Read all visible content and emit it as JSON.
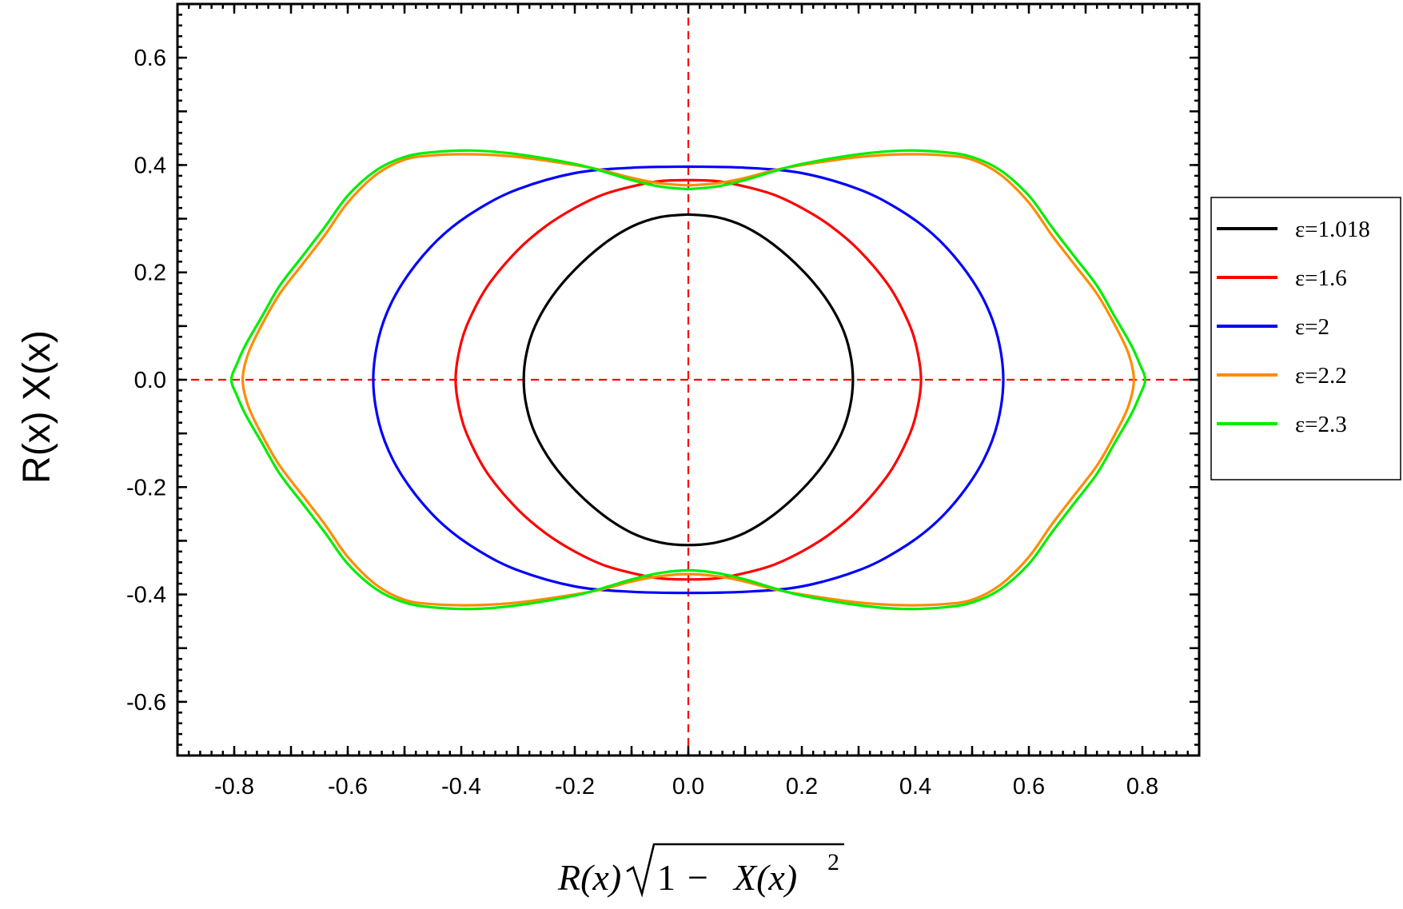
{
  "chart_data": {
    "type": "line",
    "title": "",
    "xlabel": {
      "prefix": "R(x)",
      "radicand_one": "1",
      "minus": "−",
      "radicand_term": "X(x)",
      "exponent": "2"
    },
    "ylabel": "R(x) X(x)",
    "xlim": [
      -0.9,
      0.9
    ],
    "ylim": [
      -0.7,
      0.7
    ],
    "xticks": [
      -0.8,
      -0.6,
      -0.4,
      -0.2,
      0.0,
      0.2,
      0.4,
      0.6,
      0.8
    ],
    "xtick_labels": [
      "-0.8",
      "-0.6",
      "-0.4",
      "-0.2",
      "0.0",
      "0.2",
      "0.4",
      "0.6",
      "0.8"
    ],
    "yticks": [
      -0.6,
      -0.4,
      -0.2,
      0.0,
      0.2,
      0.4,
      0.6
    ],
    "ytick_labels": [
      "-0.6",
      "-0.4",
      "-0.2",
      "0.0",
      "0.2",
      "0.4",
      "0.6"
    ],
    "reference_lines": [
      {
        "orientation": "vertical",
        "value": 0.0,
        "color": "#ff0000",
        "style": "dashed"
      },
      {
        "orientation": "horizontal",
        "value": 0.0,
        "color": "#ff0000",
        "style": "dashed"
      }
    ],
    "legend_position": "right, outside plot",
    "series": [
      {
        "name": "ε=1.018",
        "color": "#000000",
        "points_upper_right": [
          [
            0.0,
            0.308
          ],
          [
            0.05,
            0.303
          ],
          [
            0.1,
            0.285
          ],
          [
            0.15,
            0.252
          ],
          [
            0.2,
            0.205
          ],
          [
            0.24,
            0.155
          ],
          [
            0.27,
            0.1
          ],
          [
            0.285,
            0.05
          ],
          [
            0.29,
            0.0
          ]
        ]
      },
      {
        "name": "ε=1.6",
        "color": "#ff0000",
        "points_upper_right": [
          [
            0.0,
            0.372
          ],
          [
            0.05,
            0.37
          ],
          [
            0.1,
            0.36
          ],
          [
            0.15,
            0.345
          ],
          [
            0.2,
            0.32
          ],
          [
            0.25,
            0.287
          ],
          [
            0.3,
            0.242
          ],
          [
            0.35,
            0.18
          ],
          [
            0.38,
            0.125
          ],
          [
            0.4,
            0.07
          ],
          [
            0.41,
            0.0
          ]
        ]
      },
      {
        "name": "ε=2",
        "color": "#0000ff",
        "points_upper_right": [
          [
            0.0,
            0.397
          ],
          [
            0.1,
            0.395
          ],
          [
            0.2,
            0.385
          ],
          [
            0.3,
            0.355
          ],
          [
            0.37,
            0.318
          ],
          [
            0.43,
            0.272
          ],
          [
            0.48,
            0.215
          ],
          [
            0.52,
            0.15
          ],
          [
            0.545,
            0.08
          ],
          [
            0.555,
            0.0
          ]
        ]
      },
      {
        "name": "ε=2.2",
        "color": "#ff8c00",
        "points_upper_right": [
          [
            0.0,
            0.362
          ],
          [
            0.05,
            0.366
          ],
          [
            0.1,
            0.376
          ],
          [
            0.15,
            0.39
          ],
          [
            0.2,
            0.4
          ],
          [
            0.3,
            0.415
          ],
          [
            0.38,
            0.42
          ],
          [
            0.45,
            0.418
          ],
          [
            0.5,
            0.41
          ],
          [
            0.55,
            0.382
          ],
          [
            0.6,
            0.33
          ],
          [
            0.64,
            0.27
          ],
          [
            0.68,
            0.215
          ],
          [
            0.72,
            0.16
          ],
          [
            0.75,
            0.105
          ],
          [
            0.775,
            0.05
          ],
          [
            0.785,
            0.0
          ]
        ]
      },
      {
        "name": "ε=2.3",
        "color": "#00ee00",
        "points_upper_right": [
          [
            0.0,
            0.355
          ],
          [
            0.05,
            0.36
          ],
          [
            0.1,
            0.372
          ],
          [
            0.15,
            0.388
          ],
          [
            0.2,
            0.402
          ],
          [
            0.3,
            0.42
          ],
          [
            0.38,
            0.427
          ],
          [
            0.45,
            0.424
          ],
          [
            0.5,
            0.415
          ],
          [
            0.55,
            0.39
          ],
          [
            0.6,
            0.343
          ],
          [
            0.64,
            0.285
          ],
          [
            0.68,
            0.23
          ],
          [
            0.72,
            0.175
          ],
          [
            0.75,
            0.12
          ],
          [
            0.78,
            0.065
          ],
          [
            0.795,
            0.03
          ],
          [
            0.805,
            0.0
          ]
        ]
      }
    ]
  }
}
